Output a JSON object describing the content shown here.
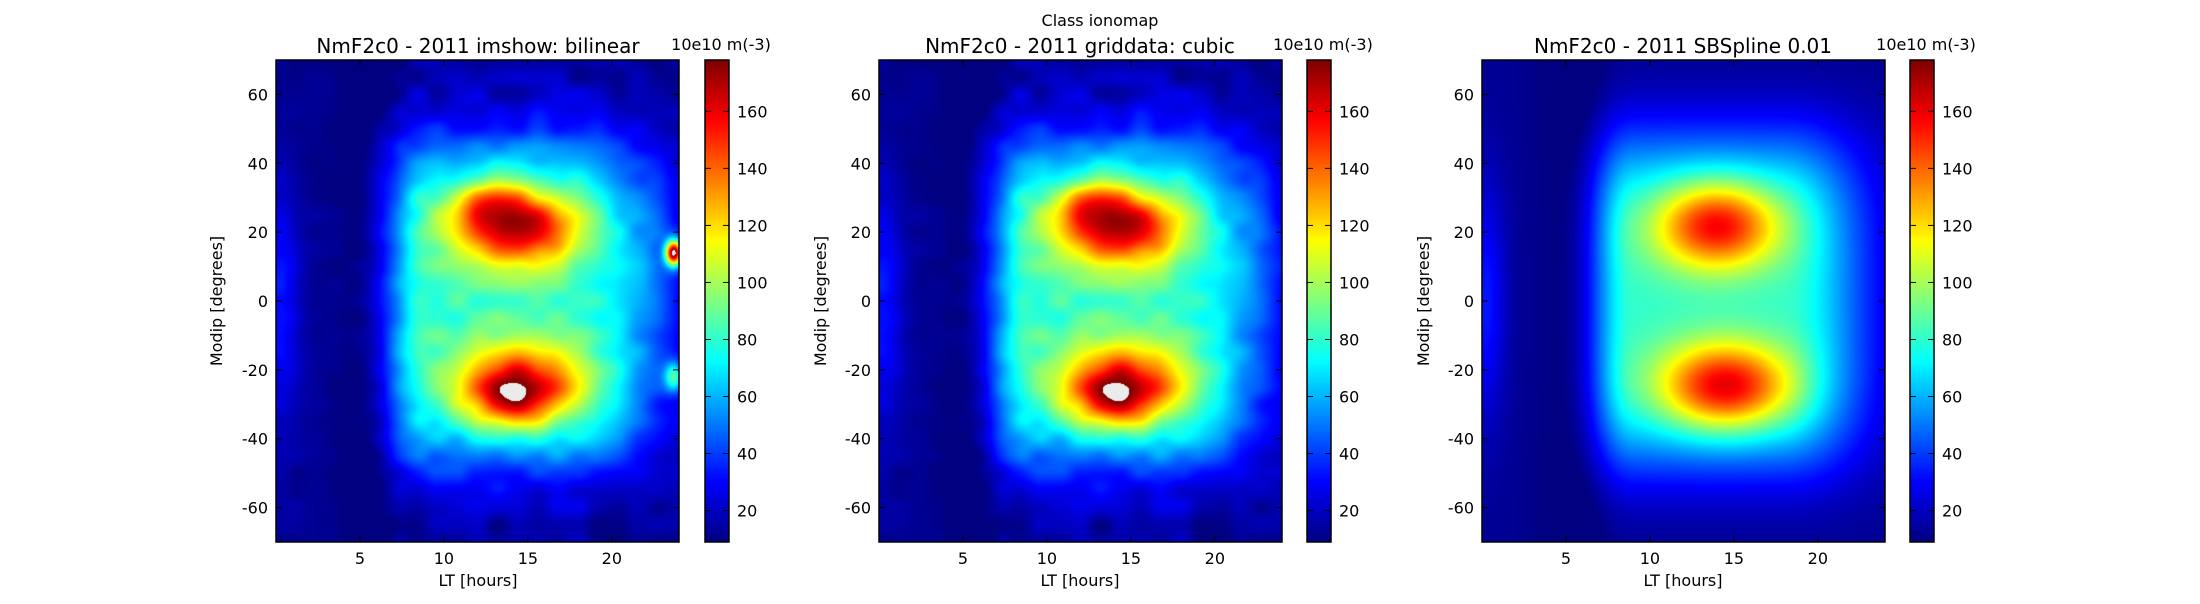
{
  "figure": {
    "suptitle": "Class ionomap"
  },
  "chart_data": [
    {
      "type": "heatmap",
      "title": "NmF2c0 - 2011 imshow: bilinear",
      "xlabel": "LT [hours]",
      "ylabel": "Modip [degrees]",
      "xlim": [
        0,
        24
      ],
      "ylim": [
        -70,
        70
      ],
      "xticks": [
        5,
        10,
        15,
        20
      ],
      "yticks": [
        -60,
        -40,
        -20,
        0,
        20,
        40,
        60
      ],
      "colormap": "jet",
      "colorbar": {
        "label": "10e10 m(-3)",
        "range": [
          9,
          178
        ],
        "ticks": [
          20,
          40,
          60,
          80,
          100,
          120,
          140,
          160
        ]
      }
    },
    {
      "type": "heatmap",
      "title": "NmF2c0 - 2011 griddata: cubic",
      "xlabel": "LT [hours]",
      "ylabel": "Modip [degrees]",
      "xlim": [
        0,
        24
      ],
      "ylim": [
        -70,
        70
      ],
      "xticks": [
        5,
        10,
        15,
        20
      ],
      "yticks": [
        -60,
        -40,
        -20,
        0,
        20,
        40,
        60
      ],
      "colormap": "jet",
      "colorbar": {
        "label": "10e10 m(-3)",
        "range": [
          9,
          178
        ],
        "ticks": [
          20,
          40,
          60,
          80,
          100,
          120,
          140,
          160
        ]
      }
    },
    {
      "type": "heatmap",
      "title": "NmF2c0 - 2011 SBSpline 0.01",
      "xlabel": "LT [hours]",
      "ylabel": "Modip [degrees]",
      "xlim": [
        0,
        24
      ],
      "ylim": [
        -70,
        70
      ],
      "xticks": [
        5,
        10,
        15,
        20
      ],
      "yticks": [
        -60,
        -40,
        -20,
        0,
        20,
        40,
        60
      ],
      "colormap": "jet",
      "colorbar": {
        "label": "10e10 m(-3)",
        "range": [
          9,
          178
        ],
        "ticks": [
          20,
          40,
          60,
          80,
          100,
          120,
          140,
          160
        ]
      }
    }
  ]
}
